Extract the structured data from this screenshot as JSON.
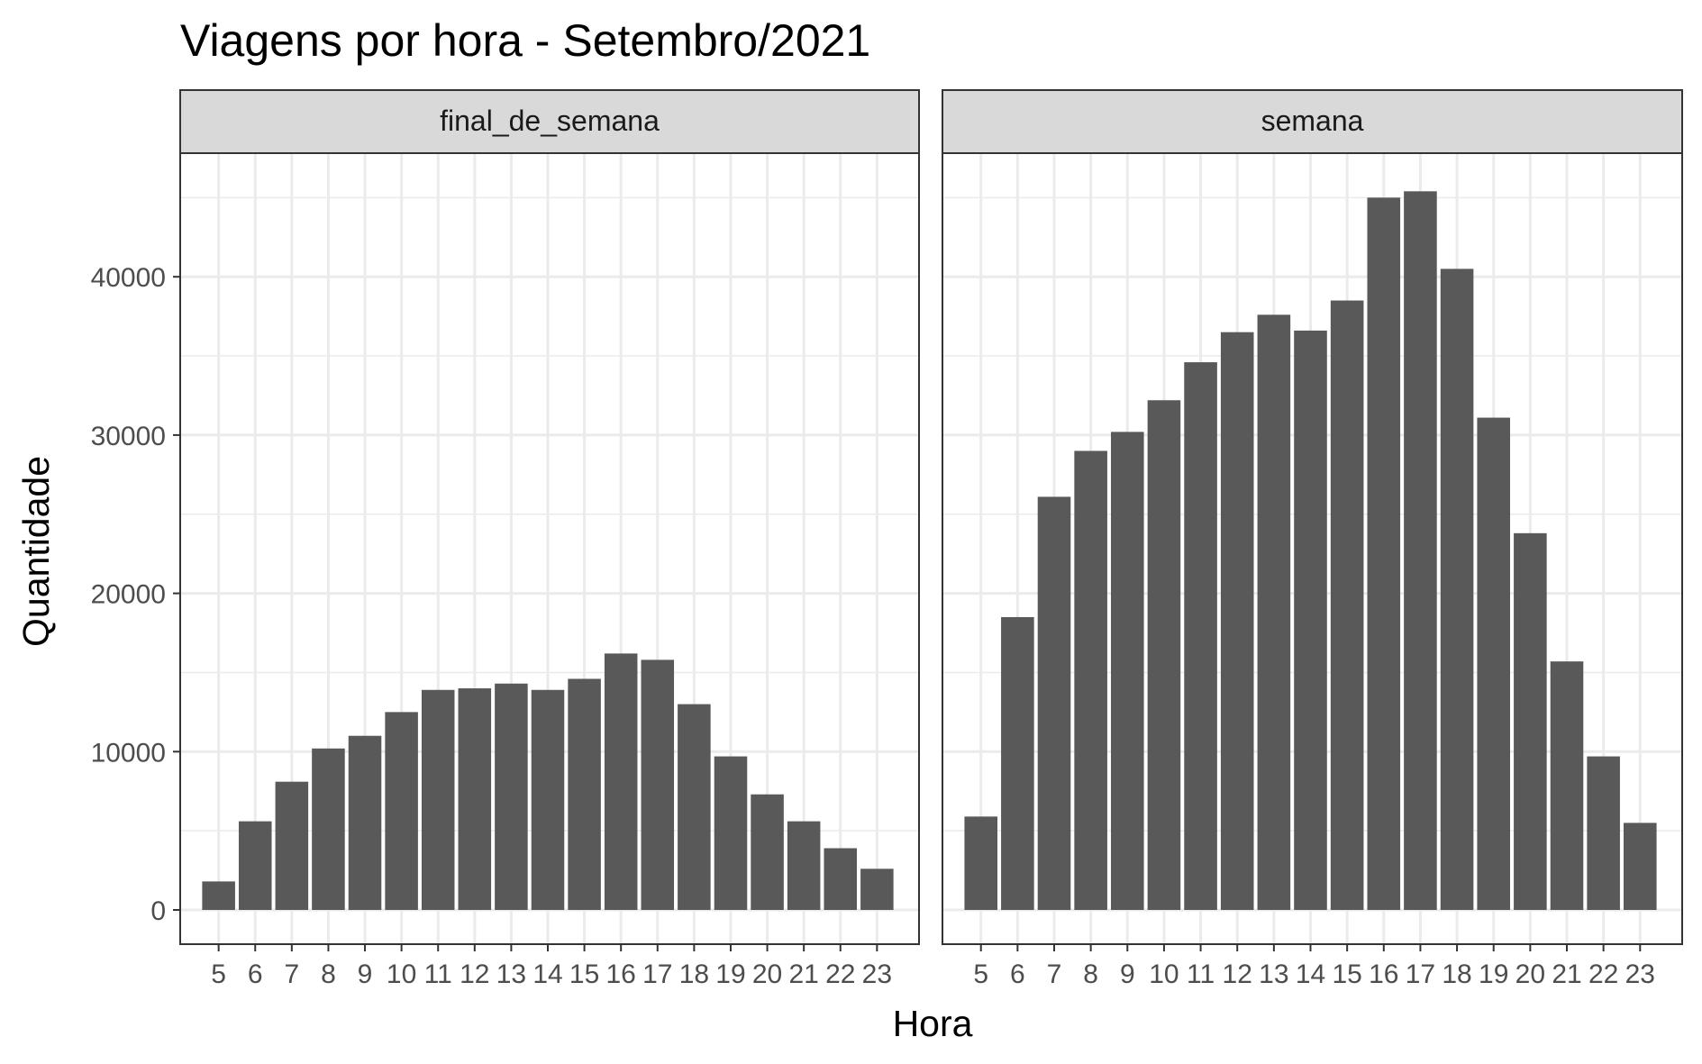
{
  "chart_data": {
    "type": "bar",
    "title": "Viagens por hora - Setembro/2021",
    "xlabel": "Hora",
    "ylabel": "Quantidade",
    "ylim": [
      0,
      48000
    ],
    "yticks": [
      0,
      10000,
      20000,
      30000,
      40000
    ],
    "grid": true,
    "bar_color": "#595959",
    "grid_color": "#ebebeb",
    "strip_color": "#d9d9d9",
    "categories": [
      "5",
      "6",
      "7",
      "8",
      "9",
      "10",
      "11",
      "12",
      "13",
      "14",
      "15",
      "16",
      "17",
      "18",
      "19",
      "20",
      "21",
      "22",
      "23"
    ],
    "panels": [
      {
        "strip": "final_de_semana",
        "values": [
          1800,
          5600,
          8100,
          10200,
          11000,
          12500,
          13900,
          14000,
          14300,
          13900,
          14600,
          16200,
          15800,
          13000,
          9700,
          7300,
          5600,
          3900,
          2600
        ]
      },
      {
        "strip": "semana",
        "values": [
          5900,
          18500,
          26100,
          29000,
          30200,
          32200,
          34600,
          36500,
          37600,
          36600,
          38500,
          45000,
          45400,
          40500,
          31100,
          23800,
          15700,
          9700,
          5500
        ]
      }
    ]
  }
}
